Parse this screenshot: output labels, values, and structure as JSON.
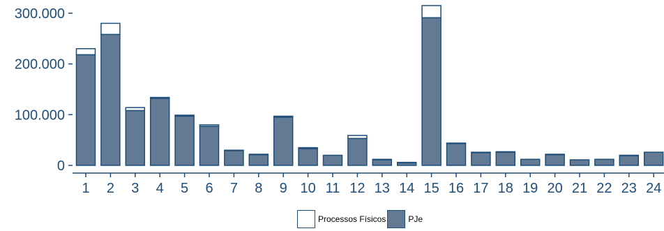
{
  "chart_data": {
    "type": "bar",
    "stacked": true,
    "categories": [
      "1",
      "2",
      "3",
      "4",
      "5",
      "6",
      "7",
      "8",
      "9",
      "10",
      "11",
      "12",
      "13",
      "14",
      "15",
      "16",
      "17",
      "18",
      "19",
      "20",
      "21",
      "22",
      "23",
      "24"
    ],
    "series": [
      {
        "name": "PJe",
        "color": "#627a93",
        "values": [
          218000,
          258000,
          108000,
          132000,
          97000,
          77000,
          29000,
          21000,
          95000,
          33000,
          20000,
          53000,
          11000,
          5000,
          291000,
          43000,
          25000,
          26000,
          12000,
          21000,
          11000,
          12000,
          19000,
          26000
        ]
      },
      {
        "name": "Processos Físicos",
        "color": "#ffffff",
        "values": [
          12000,
          22000,
          6000,
          2000,
          2000,
          3000,
          1000,
          1000,
          2000,
          2000,
          0,
          6000,
          1000,
          1000,
          24000,
          1000,
          1000,
          1000,
          0,
          1000,
          0,
          0,
          1000,
          0
        ]
      }
    ],
    "y_ticks": [
      {
        "value": 0,
        "label": "0"
      },
      {
        "value": 100000,
        "label": "100.000"
      },
      {
        "value": 200000,
        "label": "200.000"
      },
      {
        "value": 300000,
        "label": "300.000"
      }
    ],
    "ylim": [
      0,
      320000
    ],
    "grid": false,
    "legend_position": "bottom",
    "axis_color": "#1f4e79"
  },
  "legend": {
    "items": [
      {
        "label": "Processos Físicos",
        "color": "#ffffff"
      },
      {
        "label": "PJe",
        "color": "#627a93"
      }
    ]
  }
}
